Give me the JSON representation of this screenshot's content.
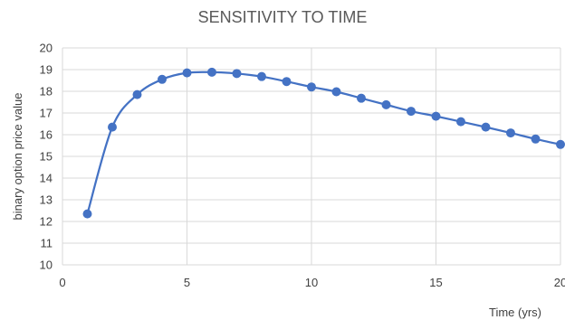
{
  "chart_data": {
    "type": "line",
    "title": "SENSITIVITY TO TIME",
    "xlabel": "Time (yrs)",
    "ylabel": "binary option price value",
    "xlim": [
      0,
      20
    ],
    "ylim": [
      10,
      20
    ],
    "xticks": [
      0,
      5,
      10,
      15,
      20
    ],
    "yticks": [
      10,
      11,
      12,
      13,
      14,
      15,
      16,
      17,
      18,
      19,
      20
    ],
    "grid": true,
    "legend": "none",
    "series": [
      {
        "color": "#4472c4",
        "x": [
          1,
          2,
          3,
          4,
          5,
          6,
          7,
          8,
          9,
          10,
          11,
          12,
          13,
          14,
          15,
          16,
          17,
          18,
          19,
          20
        ],
        "values": [
          12.35,
          16.35,
          17.85,
          18.55,
          18.85,
          18.88,
          18.82,
          18.68,
          18.45,
          18.2,
          17.98,
          17.68,
          17.38,
          17.08,
          16.85,
          16.6,
          16.35,
          16.08,
          15.8,
          15.55
        ]
      }
    ]
  }
}
